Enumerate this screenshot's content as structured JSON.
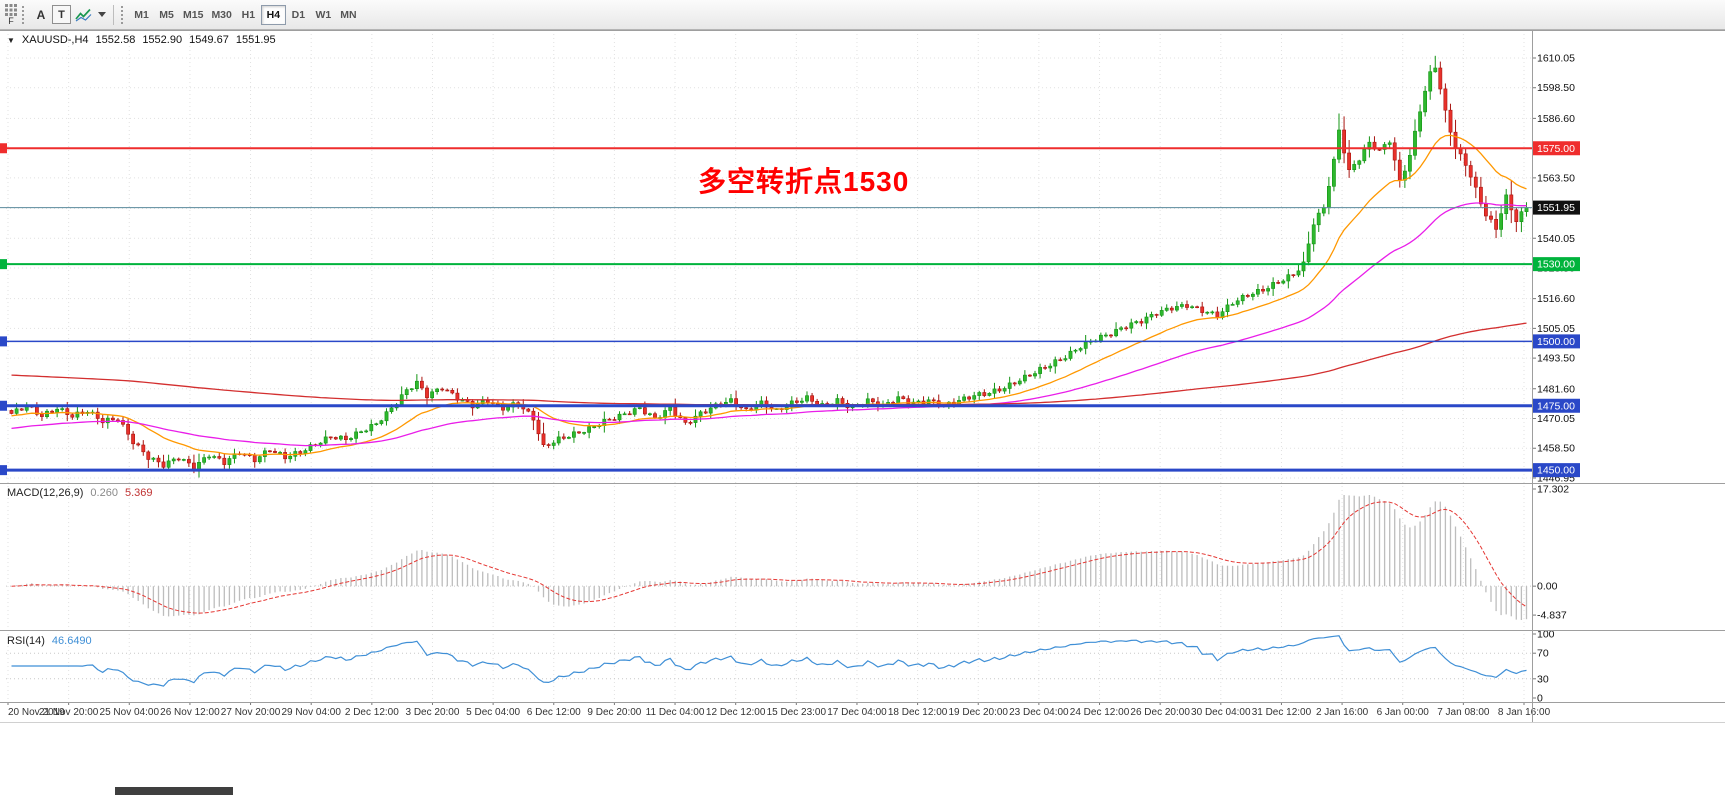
{
  "toolbar": {
    "handle_label": "F",
    "cursor_button": "A",
    "text_button": "T",
    "timeframes": [
      "M1",
      "M5",
      "M15",
      "M30",
      "H1",
      "H4",
      "D1",
      "W1",
      "MN"
    ],
    "active_timeframe": "H4"
  },
  "title_bar": {
    "collapse_icon": "▼",
    "symbol": "XAUUSD-,H4",
    "open": "1552.58",
    "high": "1552.90",
    "low": "1549.67",
    "close": "1551.95"
  },
  "annotation": {
    "text": "多空转折点1530",
    "color": "#ff0000"
  },
  "macd_panel": {
    "name": "MACD(12,26,9)",
    "main_value": "0.260",
    "signal_value": "5.369"
  },
  "rsi_panel": {
    "name": "RSI(14)",
    "value": "46.6490"
  },
  "chart_data": {
    "type": "candlestick",
    "symbol": "XAUUSD-",
    "timeframe": "H4",
    "bars_total": 300,
    "last_close": 1551.95,
    "close_anchors": [
      [
        0,
        1472
      ],
      [
        3,
        1475
      ],
      [
        6,
        1471
      ],
      [
        9,
        1474
      ],
      [
        12,
        1471
      ],
      [
        15,
        1473
      ],
      [
        18,
        1469
      ],
      [
        21,
        1470
      ],
      [
        24,
        1461
      ],
      [
        27,
        1455
      ],
      [
        30,
        1452
      ],
      [
        33,
        1455
      ],
      [
        36,
        1451
      ],
      [
        39,
        1456
      ],
      [
        42,
        1453
      ],
      [
        45,
        1457
      ],
      [
        48,
        1454
      ],
      [
        51,
        1458
      ],
      [
        54,
        1455
      ],
      [
        57,
        1457
      ],
      [
        60,
        1460
      ],
      [
        63,
        1463
      ],
      [
        66,
        1462
      ],
      [
        69,
        1465
      ],
      [
        72,
        1468
      ],
      [
        75,
        1474
      ],
      [
        78,
        1481
      ],
      [
        80,
        1484
      ],
      [
        82,
        1479
      ],
      [
        85,
        1482
      ],
      [
        88,
        1478
      ],
      [
        91,
        1475
      ],
      [
        94,
        1477
      ],
      [
        97,
        1474
      ],
      [
        100,
        1476
      ],
      [
        103,
        1470
      ],
      [
        105,
        1459
      ],
      [
        108,
        1462
      ],
      [
        111,
        1464
      ],
      [
        114,
        1466
      ],
      [
        117,
        1469
      ],
      [
        120,
        1471
      ],
      [
        124,
        1474
      ],
      [
        127,
        1470
      ],
      [
        130,
        1474
      ],
      [
        133,
        1468
      ],
      [
        136,
        1472
      ],
      [
        139,
        1475
      ],
      [
        142,
        1477
      ],
      [
        145,
        1473
      ],
      [
        148,
        1476
      ],
      [
        151,
        1473
      ],
      [
        154,
        1476
      ],
      [
        157,
        1478
      ],
      [
        160,
        1475
      ],
      [
        163,
        1477
      ],
      [
        166,
        1474
      ],
      [
        169,
        1477
      ],
      [
        172,
        1475
      ],
      [
        175,
        1478
      ],
      [
        178,
        1476
      ],
      [
        181,
        1477
      ],
      [
        184,
        1475
      ],
      [
        187,
        1477
      ],
      [
        190,
        1479
      ],
      [
        193,
        1480
      ],
      [
        196,
        1482
      ],
      [
        199,
        1485
      ],
      [
        202,
        1488
      ],
      [
        205,
        1491
      ],
      [
        208,
        1494
      ],
      [
        211,
        1498
      ],
      [
        214,
        1501
      ],
      [
        217,
        1503
      ],
      [
        220,
        1506
      ],
      [
        223,
        1508
      ],
      [
        226,
        1511
      ],
      [
        229,
        1513
      ],
      [
        232,
        1514
      ],
      [
        235,
        1512
      ],
      [
        238,
        1510
      ],
      [
        241,
        1515
      ],
      [
        244,
        1518
      ],
      [
        247,
        1520
      ],
      [
        250,
        1523
      ],
      [
        253,
        1526
      ],
      [
        255,
        1530
      ],
      [
        257,
        1546
      ],
      [
        259,
        1552
      ],
      [
        261,
        1570
      ],
      [
        262,
        1582
      ],
      [
        264,
        1566
      ],
      [
        266,
        1571
      ],
      [
        268,
        1577
      ],
      [
        270,
        1574
      ],
      [
        272,
        1578
      ],
      [
        274,
        1562
      ],
      [
        276,
        1572
      ],
      [
        278,
        1590
      ],
      [
        280,
        1604
      ],
      [
        281,
        1607
      ],
      [
        283,
        1589
      ],
      [
        285,
        1575
      ],
      [
        287,
        1569
      ],
      [
        289,
        1559
      ],
      [
        291,
        1549
      ],
      [
        293,
        1544
      ],
      [
        295,
        1556
      ],
      [
        297,
        1547
      ],
      [
        299,
        1551.95
      ]
    ],
    "y_ticks": [
      1610.05,
      1598.5,
      1586.6,
      1575.05,
      1563.5,
      1551.6,
      1540.05,
      1528.5,
      1516.6,
      1505.05,
      1493.5,
      1481.6,
      1470.05,
      1458.5,
      1446.95
    ],
    "x_labels": [
      "20 Nov 2019",
      "21 Nov 20:00",
      "25 Nov 04:00",
      "26 Nov 12:00",
      "27 Nov 20:00",
      "29 Nov 04:00",
      "2 Dec 12:00",
      "3 Dec 20:00",
      "5 Dec 04:00",
      "6 Dec 12:00",
      "9 Dec 20:00",
      "11 Dec 04:00",
      "12 Dec 12:00",
      "15 Dec 23:00",
      "17 Dec 04:00",
      "18 Dec 12:00",
      "19 Dec 20:00",
      "23 Dec 04:00",
      "24 Dec 12:00",
      "26 Dec 20:00",
      "30 Dec 04:00",
      "31 Dec 12:00",
      "2 Jan 16:00",
      "6 Jan 00:00",
      "7 Jan 08:00",
      "8 Jan 16:00"
    ],
    "h_lines": [
      {
        "price": 1575.0,
        "color": "#ef2d2d",
        "width": 2,
        "tag": true
      },
      {
        "price": 1551.95,
        "color": "#5a8a9c",
        "width": 1,
        "tag": false,
        "box": "#111111"
      },
      {
        "price": 1530.0,
        "color": "#00b33c",
        "width": 2,
        "tag": true
      },
      {
        "price": 1500.0,
        "color": "#2a48c8",
        "width": 1.5,
        "tag": true
      },
      {
        "price": 1475.0,
        "color": "#2a48c8",
        "width": 3,
        "tag": true
      },
      {
        "price": 1450.0,
        "color": "#2a48c8",
        "width": 3,
        "tag": true
      }
    ],
    "moving_averages": [
      {
        "name": "ma-fast",
        "period": 20,
        "seed": 1471,
        "color": "#ff9800"
      },
      {
        "name": "ma-medium",
        "period": 60,
        "seed": 1466,
        "color": "#e91ee9"
      },
      {
        "name": "ma-slow",
        "period": 300,
        "seed": 1487,
        "color": "#d32f2f"
      }
    ],
    "candle_up": {
      "fill": "#2eb82e",
      "stroke": "#149414"
    },
    "candle_down": {
      "fill": "#e8312b",
      "stroke": "#a81510"
    },
    "macd": {
      "fast": 12,
      "slow": 26,
      "signal": 9,
      "hist_color": "#bdbdbd",
      "signal_color": "#e53935",
      "axis_labels": [
        "17.302",
        "0.00",
        "-4.837"
      ],
      "axis_values": [
        17.302,
        0,
        -4.837
      ]
    },
    "rsi": {
      "period": 14,
      "color": "#3f8fd6",
      "levels": [
        70,
        30
      ],
      "axis_labels": [
        "100",
        "70",
        "30",
        "0"
      ],
      "axis_values": [
        100,
        70,
        30,
        0
      ]
    }
  }
}
